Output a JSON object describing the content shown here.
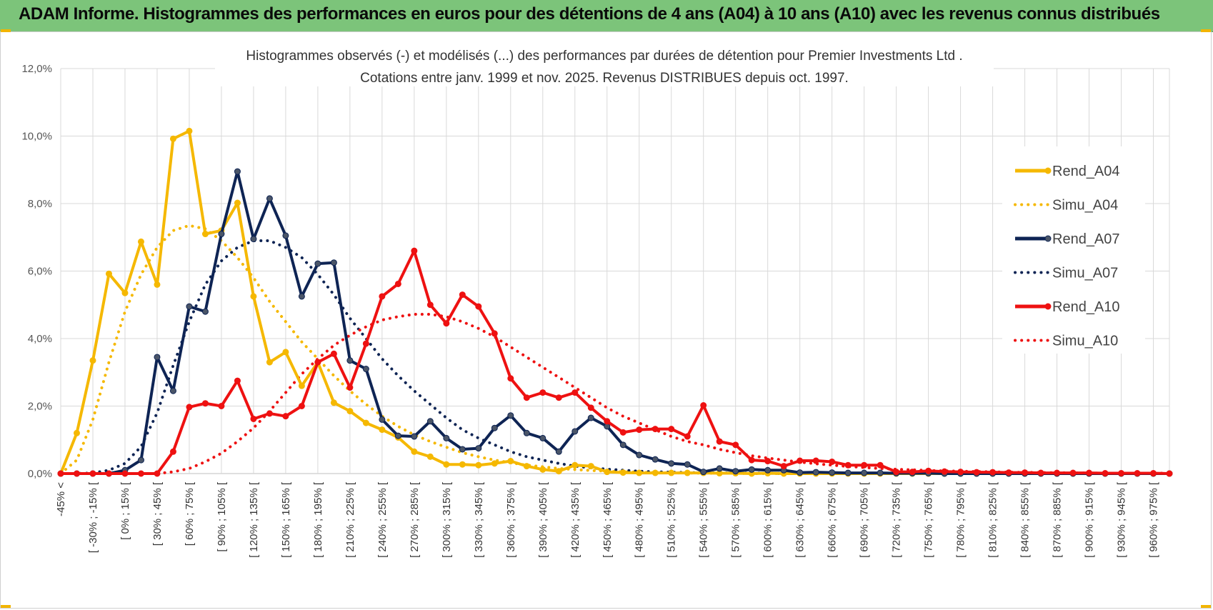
{
  "header": {
    "title": "ADAM Informe. Histogrammes des performances en euros pour des détentions de 4 ans (A04) à 10 ans (A10) avec les revenus connus distribués"
  },
  "chart_data": {
    "type": "line",
    "title_lines": [
      "Histogrammes observés (-) et modélisés (...) des performances par durées de détention pour Premier Investments Ltd .",
      "Cotations entre janv. 1999 et nov. 2025. Revenus DISTRIBUES depuis oct. 1997."
    ],
    "xlabel": "",
    "ylabel": "",
    "ylim": [
      0,
      12
    ],
    "y_ticks": [
      "0,0%",
      "2,0%",
      "4,0%",
      "6,0%",
      "8,0%",
      "10,0%",
      "12,0%"
    ],
    "x_tick_labels": [
      "-45% <",
      "[ -30% ; -15% [",
      "[ 0% ; 15% [",
      "[ 30% ; 45% [",
      "[ 60% ; 75% [",
      "[ 90% ; 105% [",
      "[ 120% ; 135% [",
      "[ 150% ; 165% [",
      "[ 180% ; 195% [",
      "[ 210% ; 225% [",
      "[ 240% ; 255% [",
      "[ 270% ; 285% [",
      "[ 300% ; 315% [",
      "[ 330% ; 345% [",
      "[ 360% ; 375% [",
      "[ 390% ; 405% [",
      "[ 420% ; 435% [",
      "[ 450% ; 465% [",
      "[ 480% ; 495% [",
      "[ 510% ; 525% [",
      "[ 540% ; 555% [",
      "[ 570% ; 585% [",
      "[ 600% ; 615% [",
      "[ 630% ; 645% [",
      "[ 660% ; 675% [",
      "[ 690% ; 705% [",
      "[ 720% ; 735% [",
      "[ 750% ; 765% [",
      "[ 780% ; 795% [",
      "[ 810% ; 825% [",
      "[ 840% ; 855% [",
      "[ 870% ; 885% [",
      "[ 900% ; 915% [",
      "[ 930% ; 945% [",
      "[ 960% ; 975% ["
    ],
    "n_categories": 70,
    "legend_position": "right",
    "grid": true,
    "series": [
      {
        "name": "Rend_A04",
        "color": "#f5b800",
        "style": "solid",
        "markers": true,
        "values": [
          0.0,
          1.2,
          3.35,
          5.92,
          5.35,
          6.87,
          5.6,
          9.92,
          10.15,
          7.1,
          7.2,
          8.02,
          5.25,
          3.3,
          3.6,
          2.6,
          3.3,
          2.1,
          1.85,
          1.5,
          1.3,
          1.07,
          0.65,
          0.5,
          0.27,
          0.27,
          0.25,
          0.3,
          0.37,
          0.22,
          0.12,
          0.07,
          0.25,
          0.22,
          0.05,
          0.03,
          0.02,
          0.02,
          0.02,
          0.02,
          0.02,
          0.01,
          0.01,
          0.0,
          0.01,
          0.0,
          0.0,
          0.0,
          0.0,
          0.0,
          0.0,
          0.0,
          0.0,
          0.0,
          0.0,
          0.0,
          0.0,
          0.0,
          0.0,
          0.0,
          0.0,
          0.0,
          0.0,
          0.0,
          0.0,
          0.0,
          0.0,
          0.0,
          0.0,
          0.0
        ]
      },
      {
        "name": "Simu_A04",
        "color": "#f5b800",
        "style": "dotted",
        "markers": false,
        "values": [
          0.0,
          0.4,
          1.6,
          3.3,
          4.8,
          5.9,
          6.7,
          7.2,
          7.35,
          7.25,
          6.9,
          6.4,
          5.8,
          5.1,
          4.5,
          3.9,
          3.4,
          2.9,
          2.45,
          2.05,
          1.7,
          1.4,
          1.15,
          0.95,
          0.78,
          0.62,
          0.5,
          0.4,
          0.32,
          0.25,
          0.2,
          0.15,
          0.12,
          0.09,
          0.07,
          0.05,
          0.04,
          0.03,
          0.02,
          0.02,
          0.01,
          0.01,
          0.01,
          0.0,
          0.0,
          0.0,
          0.0,
          0.0,
          0.0,
          0.0,
          0.0,
          0.0,
          0.0,
          0.0,
          0.0,
          0.0,
          0.0,
          0.0,
          0.0,
          0.0,
          0.0,
          0.0,
          0.0,
          0.0,
          0.0,
          0.0,
          0.0,
          0.0,
          0.0,
          0.0
        ]
      },
      {
        "name": "Rend_A07",
        "color": "#0e2454",
        "style": "solid",
        "markers": true,
        "values": [
          0.0,
          0.0,
          0.0,
          0.0,
          0.1,
          0.4,
          3.45,
          2.45,
          4.95,
          4.8,
          7.1,
          8.95,
          6.95,
          8.15,
          7.05,
          5.25,
          6.22,
          6.25,
          3.35,
          3.1,
          1.6,
          1.12,
          1.1,
          1.55,
          1.05,
          0.72,
          0.75,
          1.35,
          1.72,
          1.2,
          1.05,
          0.65,
          1.25,
          1.65,
          1.4,
          0.85,
          0.55,
          0.42,
          0.3,
          0.27,
          0.05,
          0.15,
          0.07,
          0.12,
          0.1,
          0.1,
          0.03,
          0.04,
          0.03,
          0.02,
          0.02,
          0.02,
          0.01,
          0.01,
          0.01,
          0.0,
          0.0,
          0.0,
          0.0,
          0.0,
          0.0,
          0.0,
          0.0,
          0.0,
          0.0,
          0.0,
          0.0,
          0.0,
          0.0,
          0.0
        ]
      },
      {
        "name": "Simu_A07",
        "color": "#0e2454",
        "style": "dotted",
        "markers": false,
        "values": [
          0.0,
          0.0,
          0.02,
          0.1,
          0.3,
          0.8,
          1.8,
          3.2,
          4.5,
          5.6,
          6.3,
          6.7,
          6.9,
          6.9,
          6.7,
          6.4,
          5.9,
          5.3,
          4.6,
          4.0,
          3.4,
          2.9,
          2.45,
          2.05,
          1.65,
          1.3,
          1.05,
          0.85,
          0.65,
          0.5,
          0.4,
          0.3,
          0.22,
          0.17,
          0.13,
          0.1,
          0.07,
          0.05,
          0.04,
          0.03,
          0.02,
          0.02,
          0.01,
          0.01,
          0.01,
          0.0,
          0.0,
          0.0,
          0.0,
          0.0,
          0.0,
          0.0,
          0.0,
          0.0,
          0.0,
          0.0,
          0.0,
          0.0,
          0.0,
          0.0,
          0.0,
          0.0,
          0.0,
          0.0,
          0.0,
          0.0,
          0.0,
          0.0,
          0.0,
          0.0
        ]
      },
      {
        "name": "Rend_A10",
        "color": "#ee1111",
        "style": "solid",
        "markers": true,
        "values": [
          0.0,
          0.0,
          0.0,
          0.0,
          0.0,
          0.0,
          0.0,
          0.65,
          1.97,
          2.08,
          2.0,
          2.75,
          1.62,
          1.78,
          1.7,
          2.0,
          3.3,
          3.55,
          2.55,
          3.85,
          5.25,
          5.62,
          6.6,
          5.0,
          4.45,
          5.3,
          4.95,
          4.15,
          2.82,
          2.25,
          2.4,
          2.25,
          2.4,
          1.95,
          1.55,
          1.22,
          1.3,
          1.32,
          1.32,
          1.1,
          2.02,
          0.95,
          0.85,
          0.4,
          0.37,
          0.22,
          0.38,
          0.38,
          0.35,
          0.25,
          0.25,
          0.25,
          0.05,
          0.05,
          0.08,
          0.06,
          0.05,
          0.04,
          0.04,
          0.03,
          0.03,
          0.02,
          0.02,
          0.02,
          0.02,
          0.01,
          0.01,
          0.01,
          0.01,
          0.0
        ]
      },
      {
        "name": "Simu_A10",
        "color": "#ee1111",
        "style": "dotted",
        "markers": false,
        "values": [
          0.0,
          0.0,
          0.0,
          0.0,
          0.0,
          0.0,
          0.0,
          0.05,
          0.15,
          0.35,
          0.6,
          0.95,
          1.35,
          1.85,
          2.4,
          2.95,
          3.4,
          3.8,
          4.1,
          4.35,
          4.55,
          4.65,
          4.72,
          4.72,
          4.65,
          4.5,
          4.3,
          4.05,
          3.75,
          3.45,
          3.15,
          2.85,
          2.55,
          2.25,
          1.95,
          1.7,
          1.5,
          1.3,
          1.1,
          0.95,
          0.85,
          0.72,
          0.62,
          0.53,
          0.46,
          0.4,
          0.34,
          0.29,
          0.25,
          0.21,
          0.18,
          0.15,
          0.13,
          0.11,
          0.09,
          0.08,
          0.07,
          0.06,
          0.05,
          0.04,
          0.035,
          0.03,
          0.025,
          0.02,
          0.015,
          0.01,
          0.01,
          0.01,
          0.01,
          0.01
        ]
      }
    ]
  }
}
